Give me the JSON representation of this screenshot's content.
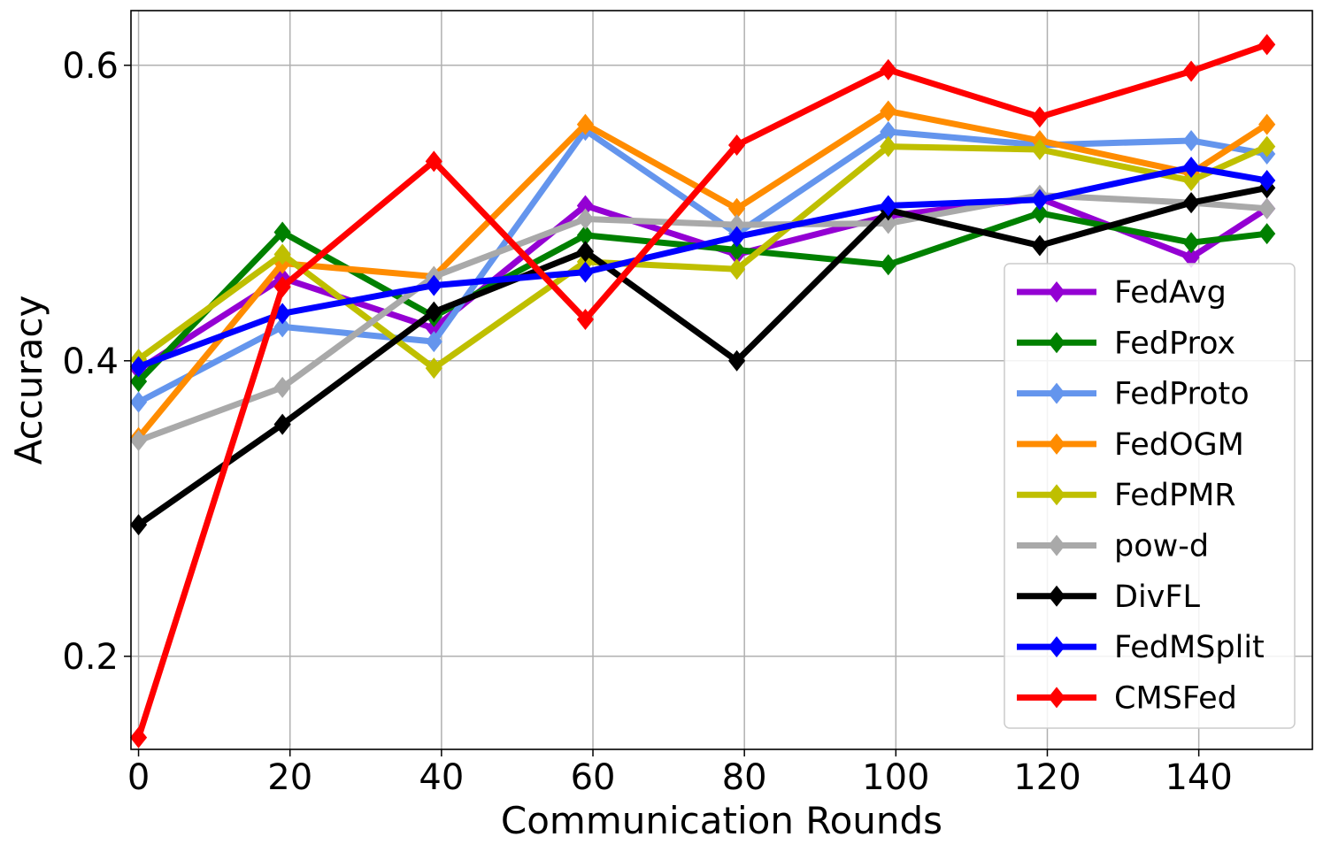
{
  "chart_data": {
    "type": "line",
    "title": "",
    "xlabel": "Communication Rounds",
    "ylabel": "Accuracy",
    "x": [
      0,
      19,
      39,
      59,
      79,
      99,
      119,
      139,
      149
    ],
    "xlim": [
      -1,
      155
    ],
    "ylim": [
      0.137,
      0.637
    ],
    "xticks": [
      0,
      20,
      40,
      60,
      80,
      100,
      120,
      140
    ],
    "yticks": [
      0.2,
      0.4,
      0.6
    ],
    "xtick_labels": [
      "0",
      "20",
      "40",
      "60",
      "80",
      "100",
      "120",
      "140"
    ],
    "ytick_labels": [
      "0.2",
      "0.4",
      "0.6"
    ],
    "grid": true,
    "legend_position": "lower-right",
    "series": [
      {
        "name": "FedAvg",
        "color": "#9400D3",
        "values": [
          0.394,
          0.456,
          0.422,
          0.505,
          0.472,
          0.498,
          0.51,
          0.47,
          0.503
        ]
      },
      {
        "name": "FedProx",
        "color": "#008000",
        "values": [
          0.386,
          0.487,
          0.43,
          0.485,
          0.475,
          0.465,
          0.5,
          0.48,
          0.486
        ]
      },
      {
        "name": "FedProto",
        "color": "#6495ED",
        "values": [
          0.372,
          0.423,
          0.413,
          0.556,
          0.486,
          0.555,
          0.546,
          0.549,
          0.54
        ]
      },
      {
        "name": "FedOGM",
        "color": "#FF8C00",
        "values": [
          0.348,
          0.466,
          0.457,
          0.56,
          0.503,
          0.569,
          0.549,
          0.527,
          0.56
        ]
      },
      {
        "name": "FedPMR",
        "color": "#BFBF00",
        "values": [
          0.401,
          0.472,
          0.395,
          0.467,
          0.462,
          0.545,
          0.543,
          0.522,
          0.545
        ]
      },
      {
        "name": "pow-d",
        "color": "#A9A9A9",
        "values": [
          0.346,
          0.382,
          0.457,
          0.496,
          0.492,
          0.493,
          0.512,
          0.507,
          0.503
        ]
      },
      {
        "name": "DivFL",
        "color": "#000000",
        "values": [
          0.289,
          0.357,
          0.433,
          0.474,
          0.4,
          0.502,
          0.478,
          0.507,
          0.517
        ]
      },
      {
        "name": "FedMSplit",
        "color": "#0000FF",
        "values": [
          0.396,
          0.432,
          0.451,
          0.46,
          0.484,
          0.505,
          0.509,
          0.531,
          0.522
        ]
      },
      {
        "name": "CMSFed",
        "color": "#FF0000",
        "values": [
          0.145,
          0.45,
          0.535,
          0.428,
          0.546,
          0.597,
          0.565,
          0.596,
          0.614
        ]
      }
    ]
  }
}
